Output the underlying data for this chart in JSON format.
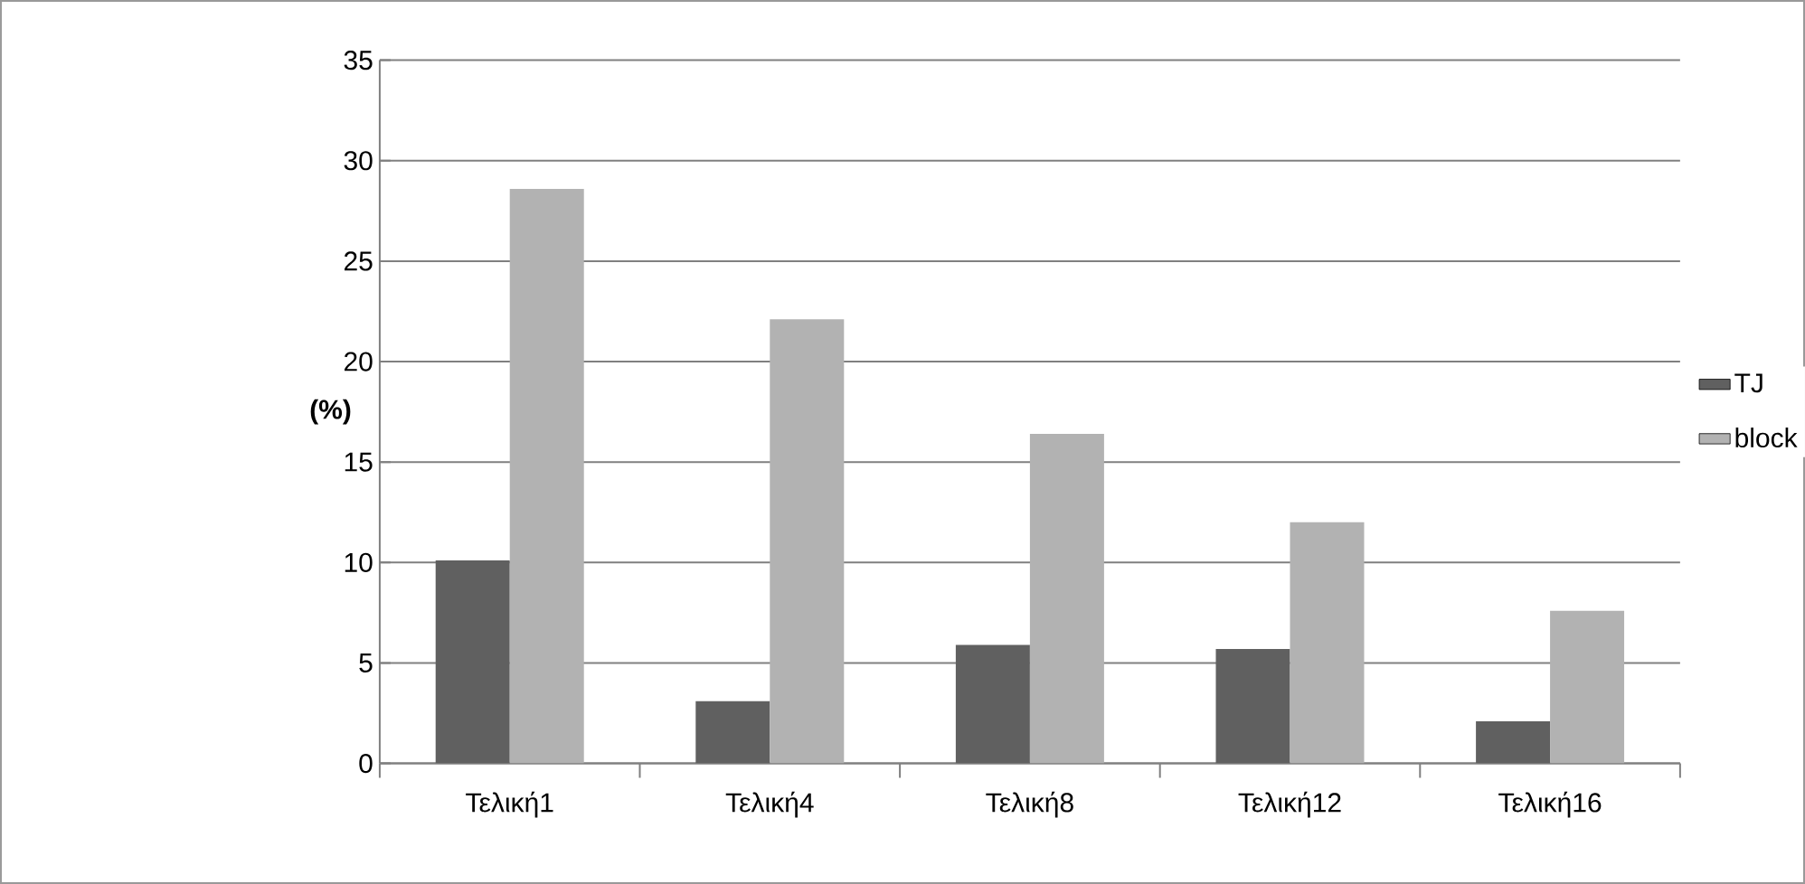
{
  "chart_data": {
    "type": "bar",
    "ylabel": "(%)",
    "categories": [
      "Τελική1",
      "Τελική4",
      "Τελική8",
      "Τελική12",
      "Τελική16"
    ],
    "series": [
      {
        "name": "TJ",
        "color": "#606060",
        "values": [
          10.1,
          3.1,
          5.9,
          5.7,
          2.1
        ]
      },
      {
        "name": "block",
        "color": "#b2b2b2",
        "values": [
          28.6,
          22.1,
          16.4,
          12.0,
          7.6
        ]
      }
    ],
    "ylim": [
      0,
      35
    ],
    "yticks": [
      0,
      5,
      10,
      15,
      20,
      25,
      30,
      35
    ],
    "grid": "y",
    "legend": "right"
  }
}
